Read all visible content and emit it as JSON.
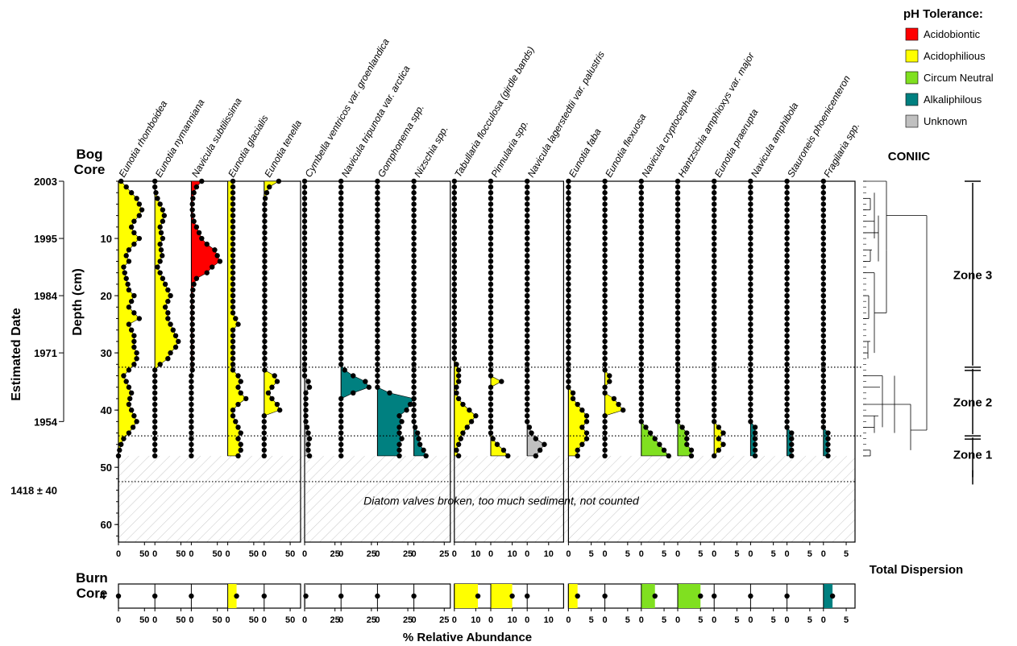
{
  "chart_data": {
    "type": "area",
    "xlabel": "% Relative Abundance",
    "ylabel_depth": "Depth (cm)",
    "ylabel_date": "Estimated Date",
    "bog_label": [
      "Bog",
      "Core"
    ],
    "burn_label": [
      "Burn",
      "Core"
    ],
    "depth_ticks": [
      10,
      20,
      30,
      40,
      50,
      60
    ],
    "date_labels": [
      {
        "text": "2003",
        "depth": 0
      },
      {
        "text": "1995",
        "depth": 10
      },
      {
        "text": "1984",
        "depth": 20
      },
      {
        "text": "1971",
        "depth": 30
      },
      {
        "text": "1954",
        "depth": 42
      },
      {
        "text": "1418 ± 40",
        "depth": 54
      }
    ],
    "ylim": [
      0,
      63
    ],
    "sample_depths": [
      0,
      1,
      2,
      3,
      4,
      5,
      6,
      7,
      8,
      9,
      10,
      11,
      12,
      13,
      14,
      15,
      16,
      17,
      18,
      19,
      20,
      21,
      22,
      23,
      24,
      25,
      26,
      27,
      28,
      29,
      30,
      31,
      32,
      33,
      34,
      35,
      36,
      37,
      38,
      39,
      40,
      41,
      42,
      43,
      44,
      45,
      46,
      47,
      48
    ],
    "uncounted_from_depth": 48,
    "uncounted_note": "Diatom valves broken, too much sediment, not counted",
    "zone_boundaries": [
      32.5,
      44.5,
      52.5
    ],
    "burn_core_depth_label": "4",
    "ph_legend": {
      "title": "pH Tolerance:",
      "items": [
        {
          "label": "Acidobiontic",
          "color": "#ff0000"
        },
        {
          "label": "Acidophilious",
          "color": "#ffff00"
        },
        {
          "label": "Circum Neutral",
          "color": "#80e020"
        },
        {
          "label": "Alkaliphilous",
          "color": "#008080"
        },
        {
          "label": "Unknown",
          "color": "#c0c0c0"
        }
      ]
    },
    "coniic_label": "CONIIC",
    "total_dispersion_label": "Total Dispersion",
    "zones": [
      {
        "label": "Zone 3",
        "top_depth": 0,
        "bottom_depth": 32.5
      },
      {
        "label": "Zone 2",
        "top_depth": 32.5,
        "bottom_depth": 44.5
      },
      {
        "label": "Zone 1",
        "top_depth": 44.5,
        "bottom_depth": 52
      }
    ],
    "groups": [
      [
        0,
        1,
        2,
        3,
        4
      ],
      [
        5,
        6,
        7,
        8
      ],
      [
        9,
        10,
        11
      ],
      [
        12,
        13,
        14,
        15,
        16,
        17,
        18,
        19,
        20
      ]
    ],
    "series": [
      {
        "name": "Eunotia rhomboidea",
        "ph": "Acidophilious",
        "scale_max": 70,
        "ticks": [
          0,
          50
        ],
        "burn": 0,
        "values": [
          5,
          15,
          25,
          35,
          40,
          45,
          40,
          30,
          25,
          30,
          40,
          30,
          20,
          15,
          20,
          10,
          12,
          15,
          18,
          20,
          30,
          25,
          20,
          30,
          40,
          20,
          25,
          30,
          30,
          30,
          35,
          35,
          30,
          20,
          10,
          15,
          20,
          25,
          22,
          20,
          25,
          30,
          35,
          28,
          20,
          10,
          5,
          2,
          0
        ]
      },
      {
        "name": "Eunotia nymanniana",
        "ph": "Acidophilious",
        "scale_max": 70,
        "ticks": [
          0,
          50
        ],
        "burn": 0,
        "values": [
          0,
          0,
          2,
          5,
          10,
          15,
          18,
          15,
          10,
          12,
          15,
          10,
          12,
          14,
          10,
          5,
          10,
          15,
          20,
          25,
          30,
          25,
          20,
          25,
          25,
          30,
          35,
          40,
          45,
          40,
          30,
          25,
          10,
          0,
          0,
          0,
          0,
          0,
          0,
          0,
          0,
          0,
          0,
          0,
          0,
          0,
          0,
          0,
          0
        ]
      },
      {
        "name": "Navicula subtilissima",
        "ph": "Acidobiontic",
        "scale_max": 70,
        "ticks": [
          0,
          50
        ],
        "burn": 0,
        "values": [
          20,
          10,
          5,
          3,
          2,
          2,
          3,
          5,
          10,
          15,
          20,
          30,
          45,
          50,
          55,
          40,
          30,
          10,
          5,
          3,
          2,
          2,
          2,
          2,
          2,
          2,
          2,
          2,
          2,
          2,
          2,
          2,
          2,
          2,
          0,
          0,
          0,
          0,
          0,
          0,
          0,
          0,
          0,
          0,
          0,
          0,
          0,
          0,
          0
        ]
      },
      {
        "name": "Eunotia glacialis",
        "ph": "Acidophilious",
        "scale_max": 70,
        "ticks": [
          0,
          50
        ],
        "burn": 17,
        "values": [
          10,
          10,
          10,
          10,
          10,
          10,
          10,
          10,
          10,
          10,
          10,
          10,
          10,
          10,
          10,
          10,
          10,
          10,
          10,
          10,
          10,
          10,
          10,
          10,
          15,
          20,
          10,
          10,
          10,
          10,
          10,
          10,
          10,
          10,
          20,
          25,
          20,
          25,
          35,
          20,
          10,
          10,
          15,
          20,
          25,
          20,
          25,
          25,
          20
        ]
      },
      {
        "name": "Eunotia tenella",
        "ph": "Acidophilious",
        "scale_max": 70,
        "ticks": [
          0,
          50
        ],
        "burn": 0,
        "values": [
          28,
          10,
          5,
          2,
          1,
          1,
          1,
          1,
          1,
          1,
          1,
          1,
          1,
          1,
          1,
          1,
          1,
          1,
          1,
          1,
          1,
          1,
          1,
          1,
          1,
          1,
          1,
          1,
          1,
          1,
          1,
          1,
          1,
          1,
          20,
          25,
          15,
          8,
          15,
          25,
          30,
          0,
          0,
          0,
          0,
          0,
          0,
          0,
          0
        ]
      },
      {
        "name": "Cymbella ventricos var. groenlandica",
        "ph": "Unknown",
        "scale_max": 30,
        "ticks": [
          0,
          25
        ],
        "burn": 1,
        "values": [
          0,
          0,
          0,
          0,
          0,
          0,
          0,
          0,
          0,
          0,
          0,
          0,
          0,
          0,
          0,
          0,
          0,
          0,
          0,
          0,
          0,
          0,
          0,
          0,
          0,
          0,
          0,
          0,
          0,
          0,
          0,
          0,
          0,
          0,
          0,
          3,
          4,
          1,
          1,
          1,
          1,
          1,
          1,
          2,
          3,
          4,
          3,
          3,
          4
        ]
      },
      {
        "name": "Navicula tripunota var. arctica",
        "ph": "Alkaliphilous",
        "scale_max": 30,
        "ticks": [
          0,
          25
        ],
        "burn": 0,
        "values": [
          0,
          0,
          0,
          0,
          0,
          0,
          0,
          0,
          0,
          0,
          0,
          0,
          0,
          0,
          0,
          0,
          0,
          0,
          0,
          0,
          0,
          0,
          0,
          0,
          0,
          0,
          0,
          0,
          0,
          0,
          0,
          0,
          0,
          3,
          10,
          20,
          23,
          10,
          0,
          0,
          0,
          0,
          0,
          0,
          0,
          0,
          0,
          0,
          0
        ]
      },
      {
        "name": "Gomphonema spp.",
        "ph": "Alkaliphilous",
        "scale_max": 30,
        "ticks": [
          0,
          25
        ],
        "burn": 0,
        "values": [
          0,
          0,
          0,
          0,
          0,
          0,
          0,
          0,
          0,
          0,
          0,
          0,
          0,
          0,
          0,
          0,
          0,
          0,
          0,
          0,
          0,
          0,
          0,
          0,
          0,
          0,
          0,
          0,
          0,
          0,
          0,
          0,
          0,
          0,
          0,
          0,
          0,
          10,
          30,
          27,
          24,
          18,
          20,
          18,
          18,
          20,
          18,
          18,
          18
        ]
      },
      {
        "name": "Nizschia spp.",
        "ph": "Alkaliphilous",
        "scale_max": 30,
        "ticks": [
          0,
          25
        ],
        "burn": 0,
        "values": [
          0,
          0,
          0,
          0,
          0,
          0,
          0,
          0,
          0,
          0,
          0,
          0,
          0,
          0,
          0,
          0,
          0,
          0,
          0,
          0,
          0,
          0,
          0,
          0,
          0,
          0,
          0,
          0,
          0,
          0,
          0,
          0,
          0,
          0,
          0,
          0,
          0,
          0,
          0,
          0,
          0,
          0,
          0,
          1,
          3,
          4,
          5,
          8,
          10
        ]
      },
      {
        "name": "Tabullaria flocculosa (girdle bands)",
        "ph": "Acidophilious",
        "scale_max": 17,
        "ticks": [
          0,
          10
        ],
        "burn": 11,
        "values": [
          0,
          0,
          0,
          0,
          0,
          0,
          0,
          0,
          0,
          0,
          0,
          0,
          0,
          0,
          0,
          0,
          0,
          0,
          0,
          0,
          0,
          0,
          0,
          0,
          0,
          0,
          0,
          0,
          0,
          0,
          0,
          0,
          1,
          2,
          2,
          2,
          1,
          1,
          2,
          4,
          7,
          10,
          8,
          6,
          4,
          3,
          2,
          1,
          2
        ]
      },
      {
        "name": "Pinnularia spp.",
        "ph": "Acidophilious",
        "scale_max": 17,
        "ticks": [
          0,
          10
        ],
        "burn": 10,
        "values": [
          0,
          0,
          0,
          0,
          0,
          0,
          0,
          0,
          0,
          0,
          0,
          0,
          0,
          0,
          0,
          0,
          0,
          0,
          0,
          0,
          0,
          0,
          0,
          0,
          0,
          0,
          0,
          0,
          0,
          0,
          0,
          0,
          0,
          0,
          0,
          5,
          0,
          0,
          0,
          0,
          0,
          0,
          0,
          0,
          0,
          1,
          3,
          6,
          8
        ]
      },
      {
        "name": "Navicula lagerstedtii var. palustris",
        "ph": "Unknown",
        "scale_max": 17,
        "ticks": [
          0,
          10
        ],
        "burn": 0,
        "values": [
          0,
          0,
          0,
          0,
          0,
          0,
          0,
          0,
          0,
          0,
          0,
          0,
          0,
          0,
          0,
          0,
          0,
          0,
          0,
          0,
          0,
          0,
          0,
          0,
          0,
          0,
          0,
          0,
          0,
          0,
          0,
          0,
          0,
          0,
          0,
          0,
          0,
          0,
          0,
          0,
          0,
          0,
          0,
          1,
          2,
          4,
          8,
          6,
          4
        ]
      },
      {
        "name": "Eunotia faba",
        "ph": "Acidophilious",
        "scale_max": 8,
        "ticks": [
          0,
          5
        ],
        "burn": 2,
        "values": [
          0,
          0,
          0,
          0,
          0,
          0,
          0,
          0,
          0,
          0,
          0,
          0,
          0,
          0,
          0,
          0,
          0,
          0,
          0,
          0,
          0,
          0,
          0,
          0,
          0,
          0,
          0,
          0,
          0,
          0,
          0,
          0,
          0,
          0,
          0,
          0,
          0,
          1,
          1,
          2,
          3,
          4,
          4,
          3,
          4,
          4,
          3,
          2,
          2
        ]
      },
      {
        "name": "Eunotia flexuosa",
        "ph": "Acidophilious",
        "scale_max": 8,
        "ticks": [
          0,
          5
        ],
        "burn": 0,
        "values": [
          0,
          0,
          0,
          0,
          0,
          0,
          0,
          0,
          0,
          0,
          0,
          0,
          0,
          0,
          0,
          0,
          0,
          0,
          0,
          0,
          0,
          0,
          0,
          0,
          0,
          0,
          0,
          0,
          0,
          0,
          0,
          0,
          0,
          0,
          1,
          1,
          0,
          0,
          2,
          3,
          4,
          0,
          0,
          0,
          0,
          0,
          0,
          0,
          0
        ]
      },
      {
        "name": "Navicula cryptocephala",
        "ph": "Circum Neutral",
        "scale_max": 8,
        "ticks": [
          0,
          5
        ],
        "burn": 3,
        "values": [
          0,
          0,
          0,
          0,
          0,
          0,
          0,
          0,
          0,
          0,
          0,
          0,
          0,
          0,
          0,
          0,
          0,
          0,
          0,
          0,
          0,
          0,
          0,
          0,
          0,
          0,
          0,
          0,
          0,
          0,
          0,
          0,
          0,
          0,
          0,
          0,
          0,
          0,
          0,
          0,
          0,
          0,
          0,
          1,
          2,
          3,
          4,
          5,
          6
        ]
      },
      {
        "name": "Hantzschia amphioxys var. major",
        "ph": "Circum Neutral",
        "scale_max": 8,
        "ticks": [
          0,
          5
        ],
        "burn": 5,
        "values": [
          0,
          0,
          0,
          0,
          0,
          0,
          0,
          0,
          0,
          0,
          0,
          0,
          0,
          0,
          0,
          0,
          0,
          0,
          0,
          0,
          0,
          0,
          0,
          0,
          0,
          0,
          0,
          0,
          0,
          0,
          0,
          0,
          0,
          0,
          0,
          0,
          0,
          0,
          0,
          0,
          0,
          0,
          0,
          1,
          2,
          2,
          2,
          3,
          3
        ]
      },
      {
        "name": "Eunotia praerupta",
        "ph": "Acidophilious",
        "scale_max": 8,
        "ticks": [
          0,
          5
        ],
        "burn": 0,
        "values": [
          0,
          0,
          0,
          0,
          0,
          0,
          0,
          0,
          0,
          0,
          0,
          0,
          0,
          0,
          0,
          0,
          0,
          0,
          0,
          0,
          0,
          0,
          0,
          0,
          0,
          0,
          0,
          0,
          0,
          0,
          0,
          0,
          0,
          0,
          0,
          0,
          0,
          0,
          0,
          0,
          0,
          0,
          0,
          1,
          2,
          1,
          2,
          1,
          0
        ]
      },
      {
        "name": "Navicula amphibola",
        "ph": "Alkaliphilous",
        "scale_max": 8,
        "ticks": [
          0,
          5
        ],
        "burn": 0,
        "values": [
          0,
          0,
          0,
          0,
          0,
          0,
          0,
          0,
          0,
          0,
          0,
          0,
          0,
          0,
          0,
          0,
          0,
          0,
          0,
          0,
          0,
          0,
          0,
          0,
          0,
          0,
          0,
          0,
          0,
          0,
          0,
          0,
          0,
          0,
          0,
          0,
          0,
          0,
          0,
          0,
          0,
          0,
          0,
          1,
          1,
          1,
          1,
          1,
          1
        ]
      },
      {
        "name": "Stauroneis phoenicenteron",
        "ph": "Alkaliphilous",
        "scale_max": 8,
        "ticks": [
          0,
          5
        ],
        "burn": 0,
        "values": [
          0,
          0,
          0,
          0,
          0,
          0,
          0,
          0,
          0,
          0,
          0,
          0,
          0,
          0,
          0,
          0,
          0,
          0,
          0,
          0,
          0,
          0,
          0,
          0,
          0,
          0,
          0,
          0,
          0,
          0,
          0,
          0,
          0,
          0,
          0,
          0,
          0,
          0,
          0,
          0,
          0,
          0,
          0,
          0,
          1,
          1,
          1,
          1,
          1
        ]
      },
      {
        "name": "Fragilaria spp.",
        "ph": "Alkaliphilous",
        "scale_max": 8,
        "ticks": [
          0,
          5
        ],
        "burn": 2,
        "values": [
          0,
          0,
          0,
          0,
          0,
          0,
          0,
          0,
          0,
          0,
          0,
          0,
          0,
          0,
          0,
          0,
          0,
          0,
          0,
          0,
          0,
          0,
          0,
          0,
          0,
          0,
          0,
          0,
          0,
          0,
          0,
          0,
          0,
          0,
          0,
          0,
          0,
          0,
          0,
          0,
          0,
          0,
          0,
          0,
          1,
          1,
          1,
          1,
          1
        ]
      }
    ]
  }
}
